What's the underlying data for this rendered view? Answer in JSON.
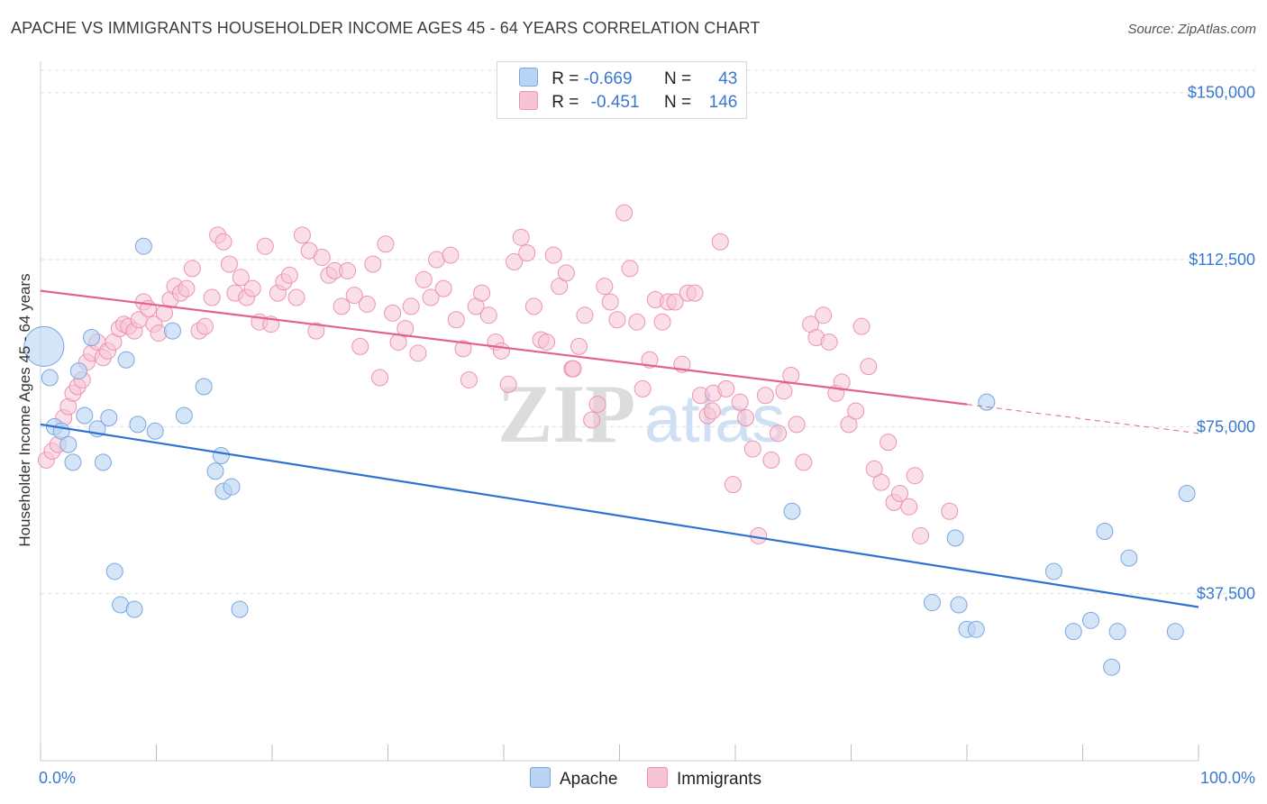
{
  "header": {
    "title": "APACHE VS IMMIGRANTS HOUSEHOLDER INCOME AGES 45 - 64 YEARS CORRELATION CHART",
    "source": "Source: ZipAtlas.com"
  },
  "legend_top": {
    "apache": {
      "r_label": "R =",
      "r_value": "-0.669",
      "n_label": "N =",
      "n_value": "43"
    },
    "immigrants": {
      "r_label": "R =",
      "r_value": "-0.451",
      "n_label": "N =",
      "n_value": "146"
    }
  },
  "legend_bottom": {
    "apache": "Apache",
    "immigrants": "Immigrants"
  },
  "watermark": {
    "zip": "ZIP",
    "atlas": "atlas"
  },
  "colors": {
    "apache_fill": "#b9d3f3",
    "apache_stroke": "#7aa7e0",
    "apache_line": "#2f72d0",
    "imm_fill": "#f7c4d5",
    "imm_stroke": "#ec93b3",
    "imm_line": "#e2628e",
    "axis_label": "#3a78d0",
    "grid": "#dedede"
  },
  "chart_data": {
    "type": "scatter",
    "title": "APACHE VS IMMIGRANTS HOUSEHOLDER INCOME AGES 45 - 64 YEARS CORRELATION CHART",
    "xlabel": "",
    "ylabel": "Householder Income Ages 45 - 64 years",
    "xlim": [
      0,
      100
    ],
    "ylim": [
      0,
      155000
    ],
    "x_tick_labels": [
      "0.0%",
      "100.0%"
    ],
    "y_ticks": [
      37500,
      75000,
      112500,
      150000
    ],
    "y_tick_labels": [
      "$37,500",
      "$75,000",
      "$112,500",
      "$150,000"
    ],
    "grid": true,
    "series": [
      {
        "name": "Apache",
        "trend": {
          "x": [
            0,
            100
          ],
          "y": [
            75500,
            34500
          ]
        },
        "points": [
          [
            0.3,
            93000,
            "large"
          ],
          [
            0.8,
            86000
          ],
          [
            1.2,
            75000
          ],
          [
            1.8,
            74000
          ],
          [
            2.4,
            71000
          ],
          [
            2.8,
            67000
          ],
          [
            3.3,
            87500
          ],
          [
            3.8,
            77500
          ],
          [
            4.4,
            95000
          ],
          [
            4.9,
            74500
          ],
          [
            5.4,
            67000
          ],
          [
            5.9,
            77000
          ],
          [
            6.4,
            42500
          ],
          [
            6.9,
            35000
          ],
          [
            7.4,
            90000
          ],
          [
            8.1,
            34000
          ],
          [
            8.4,
            75500
          ],
          [
            8.9,
            115500
          ],
          [
            9.9,
            74000
          ],
          [
            11.4,
            96500
          ],
          [
            12.4,
            77500
          ],
          [
            14.1,
            84000
          ],
          [
            15.1,
            65000
          ],
          [
            15.6,
            68500
          ],
          [
            15.8,
            60500
          ],
          [
            16.5,
            61500
          ],
          [
            17.2,
            34000
          ],
          [
            64.9,
            56000
          ],
          [
            77.0,
            35500
          ],
          [
            79.0,
            50000
          ],
          [
            79.3,
            35000
          ],
          [
            80.0,
            29500
          ],
          [
            80.8,
            29500
          ],
          [
            81.7,
            80500
          ],
          [
            87.5,
            42500
          ],
          [
            89.2,
            29000
          ],
          [
            90.7,
            31500
          ],
          [
            91.9,
            51500
          ],
          [
            92.5,
            21000
          ],
          [
            93.0,
            29000
          ],
          [
            94.0,
            45500
          ],
          [
            98.0,
            29000
          ],
          [
            99.0,
            60000
          ]
        ]
      },
      {
        "name": "Immigrants",
        "trend": {
          "x": [
            0,
            80
          ],
          "y": [
            105500,
            80000
          ]
        },
        "trend_dashed": {
          "x": [
            80,
            100
          ],
          "y": [
            80000,
            73500
          ]
        },
        "points": [
          [
            0.5,
            67500
          ],
          [
            1.0,
            69500
          ],
          [
            1.5,
            71000
          ],
          [
            2.0,
            77000
          ],
          [
            2.4,
            79500
          ],
          [
            2.8,
            82500
          ],
          [
            3.2,
            84000
          ],
          [
            3.6,
            85500
          ],
          [
            4.0,
            89500
          ],
          [
            4.4,
            91500
          ],
          [
            4.9,
            94000
          ],
          [
            5.4,
            90500
          ],
          [
            5.8,
            92000
          ],
          [
            6.3,
            94000
          ],
          [
            6.8,
            97000
          ],
          [
            7.2,
            98000
          ],
          [
            7.6,
            97500
          ],
          [
            8.1,
            96500
          ],
          [
            8.5,
            99000
          ],
          [
            8.9,
            103000
          ],
          [
            9.3,
            101500
          ],
          [
            9.8,
            98000
          ],
          [
            10.2,
            96000
          ],
          [
            10.7,
            100500
          ],
          [
            11.2,
            103500
          ],
          [
            11.6,
            106500
          ],
          [
            12.1,
            105000
          ],
          [
            12.6,
            106000
          ],
          [
            13.1,
            110500
          ],
          [
            13.7,
            96500
          ],
          [
            14.2,
            97500
          ],
          [
            14.8,
            104000
          ],
          [
            15.3,
            118000
          ],
          [
            15.8,
            116500
          ],
          [
            16.3,
            111500
          ],
          [
            16.8,
            105000
          ],
          [
            17.3,
            108500
          ],
          [
            17.8,
            104000
          ],
          [
            18.3,
            106000
          ],
          [
            18.9,
            98500
          ],
          [
            19.4,
            115500
          ],
          [
            19.9,
            98000
          ],
          [
            20.5,
            105000
          ],
          [
            21.0,
            107500
          ],
          [
            21.5,
            109000
          ],
          [
            22.1,
            104000
          ],
          [
            22.6,
            118000
          ],
          [
            23.2,
            114500
          ],
          [
            23.8,
            96500
          ],
          [
            24.3,
            113000
          ],
          [
            24.9,
            109000
          ],
          [
            25.4,
            110000
          ],
          [
            26.0,
            102000
          ],
          [
            26.5,
            110000
          ],
          [
            27.1,
            104500
          ],
          [
            27.6,
            93000
          ],
          [
            28.2,
            102500
          ],
          [
            28.7,
            111500
          ],
          [
            29.3,
            86000
          ],
          [
            29.8,
            116000
          ],
          [
            30.4,
            100500
          ],
          [
            30.9,
            94000
          ],
          [
            31.5,
            97000
          ],
          [
            32.0,
            102000
          ],
          [
            32.6,
            91500
          ],
          [
            33.1,
            108000
          ],
          [
            33.7,
            104000
          ],
          [
            34.2,
            112500
          ],
          [
            34.8,
            106000
          ],
          [
            35.4,
            113500
          ],
          [
            35.9,
            99000
          ],
          [
            36.5,
            92500
          ],
          [
            37.0,
            85500
          ],
          [
            37.6,
            102000
          ],
          [
            38.1,
            105000
          ],
          [
            38.7,
            100000
          ],
          [
            39.3,
            94000
          ],
          [
            39.8,
            92000
          ],
          [
            40.4,
            84500
          ],
          [
            40.9,
            112000
          ],
          [
            41.5,
            117500
          ],
          [
            42.0,
            114000
          ],
          [
            42.6,
            102000
          ],
          [
            43.2,
            94500
          ],
          [
            43.7,
            94000
          ],
          [
            44.3,
            113500
          ],
          [
            44.8,
            106500
          ],
          [
            45.4,
            109500
          ],
          [
            45.9,
            88000
          ],
          [
            46.5,
            93000
          ],
          [
            47.0,
            100000
          ],
          [
            47.6,
            76500
          ],
          [
            48.1,
            80000
          ],
          [
            48.7,
            106500
          ],
          [
            49.2,
            103000
          ],
          [
            49.8,
            99000
          ],
          [
            50.4,
            123000
          ],
          [
            50.9,
            110500
          ],
          [
            51.5,
            98500
          ],
          [
            52.0,
            83500
          ],
          [
            52.6,
            90000
          ],
          [
            53.1,
            103500
          ],
          [
            53.7,
            98500
          ],
          [
            54.2,
            103000
          ],
          [
            54.8,
            103000
          ],
          [
            55.4,
            89000
          ],
          [
            55.9,
            105000
          ],
          [
            56.5,
            105000
          ],
          [
            57.0,
            82000
          ],
          [
            57.6,
            77500
          ],
          [
            58.1,
            82500
          ],
          [
            58.7,
            116500
          ],
          [
            59.2,
            83500
          ],
          [
            59.8,
            62000
          ],
          [
            60.4,
            80500
          ],
          [
            60.9,
            77000
          ],
          [
            61.5,
            70000
          ],
          [
            62.0,
            50500
          ],
          [
            62.6,
            82000
          ],
          [
            63.1,
            67500
          ],
          [
            63.7,
            73500
          ],
          [
            64.2,
            83000
          ],
          [
            64.8,
            86500
          ],
          [
            65.3,
            75500
          ],
          [
            65.9,
            67000
          ],
          [
            66.5,
            98000
          ],
          [
            67.0,
            95000
          ],
          [
            67.6,
            100000
          ],
          [
            68.1,
            94000
          ],
          [
            68.7,
            82500
          ],
          [
            69.2,
            85000
          ],
          [
            69.8,
            75500
          ],
          [
            70.4,
            78500
          ],
          [
            70.9,
            97500
          ],
          [
            71.5,
            88500
          ],
          [
            72.0,
            65500
          ],
          [
            72.6,
            62500
          ],
          [
            73.2,
            71500
          ],
          [
            73.7,
            58000
          ],
          [
            74.2,
            60000
          ],
          [
            75.0,
            57000
          ],
          [
            75.5,
            64000
          ],
          [
            76.0,
            50500
          ],
          [
            78.5,
            56000
          ],
          [
            58.0,
            78500
          ],
          [
            46.0,
            88000
          ]
        ]
      }
    ]
  }
}
